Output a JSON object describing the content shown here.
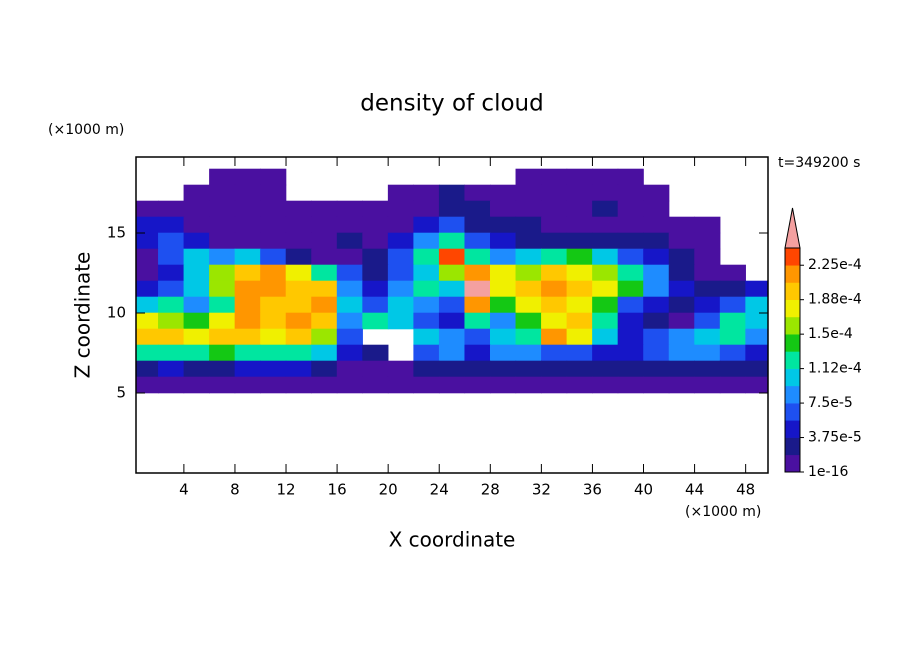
{
  "chart_data": {
    "type": "contour",
    "title": "density of cloud",
    "x_label": "X coordinate",
    "y_label": "Z coordinate",
    "x_unit": "(×1000 m)",
    "y_unit": "(×1000 m)",
    "annotation": "t=349200 s",
    "xlim": [
      0.25,
      49.75
    ],
    "ylim": [
      0,
      19.75
    ],
    "xticks": [
      4,
      8,
      12,
      16,
      20,
      24,
      28,
      32,
      36,
      40,
      44,
      48
    ],
    "yticks": [
      5,
      10,
      15
    ],
    "x": [
      1,
      3,
      5,
      7,
      9,
      11,
      13,
      15,
      17,
      19,
      21,
      23,
      25,
      27,
      29,
      31,
      33,
      35,
      37,
      39,
      41,
      43,
      45,
      47,
      49
    ],
    "z": [
      18.5,
      17.5,
      16.5,
      15.5,
      14.5,
      13.5,
      12.5,
      11.5,
      10.5,
      9.5,
      8.5,
      7.5,
      6.5,
      5.5
    ],
    "levels": [
      1e-16,
      1.875e-05,
      3.75e-05,
      5.625e-05,
      7.5e-05,
      9.375e-05,
      0.0001125,
      0.00013125,
      0.00015,
      0.00016875,
      0.0001875,
      0.00020625,
      0.000225,
      0.00024375
    ],
    "colors": [
      "#4a10a0",
      "#1a1a8a",
      "#1616c8",
      "#1e50f0",
      "#1e8cff",
      "#00c8e6",
      "#00e6a0",
      "#14c814",
      "#9be600",
      "#f0f000",
      "#ffc800",
      "#ff9600",
      "#ff4600",
      "#f4a0a0"
    ],
    "cbar_ticks": [
      {
        "value": 1e-16,
        "label": "1e-16"
      },
      {
        "value": 3.75e-05,
        "label": "3.75e-5"
      },
      {
        "value": 7.5e-05,
        "label": "7.5e-5"
      },
      {
        "value": 0.0001125,
        "label": "1.12e-4"
      },
      {
        "value": 0.00015,
        "label": "1.5e-4"
      },
      {
        "value": 0.0001875,
        "label": "1.88e-4"
      },
      {
        "value": 0.000225,
        "label": "2.25e-4"
      }
    ],
    "values": [
      [
        null,
        null,
        null,
        9e-06,
        9e-06,
        9e-06,
        null,
        null,
        null,
        null,
        null,
        null,
        null,
        null,
        null,
        9e-06,
        9e-06,
        9e-06,
        9e-06,
        9e-06,
        null,
        null,
        null,
        null,
        null
      ],
      [
        null,
        null,
        9e-06,
        9e-06,
        9e-06,
        9e-06,
        null,
        null,
        null,
        null,
        9e-06,
        9e-06,
        2.8e-05,
        9e-06,
        9e-06,
        9e-06,
        9e-06,
        9e-06,
        9e-06,
        9e-06,
        9e-06,
        null,
        null,
        null,
        null
      ],
      [
        9e-06,
        9e-06,
        9e-06,
        9e-06,
        9e-06,
        9e-06,
        9e-06,
        9e-06,
        9e-06,
        9e-06,
        9e-06,
        9e-06,
        2.8e-05,
        2.8e-05,
        9e-06,
        9e-06,
        9e-06,
        9e-06,
        2.8e-05,
        9e-06,
        9e-06,
        null,
        null,
        null,
        null
      ],
      [
        4.7e-05,
        4.7e-05,
        9e-06,
        9e-06,
        9e-06,
        9e-06,
        9e-06,
        9e-06,
        9e-06,
        9e-06,
        9e-06,
        4.7e-05,
        6.6e-05,
        2.8e-05,
        2.8e-05,
        2.8e-05,
        9e-06,
        9e-06,
        9e-06,
        9e-06,
        9e-06,
        9e-06,
        9e-06,
        null,
        null
      ],
      [
        4.7e-05,
        6.6e-05,
        4.7e-05,
        9e-06,
        9e-06,
        9e-06,
        9e-06,
        9e-06,
        2.8e-05,
        9e-06,
        4.7e-05,
        8.4e-05,
        0.000122,
        6.6e-05,
        4.7e-05,
        2.8e-05,
        2.8e-05,
        2.8e-05,
        2.8e-05,
        2.8e-05,
        2.8e-05,
        9e-06,
        9e-06,
        null,
        null
      ],
      [
        9e-06,
        6.6e-05,
        0.000103,
        8.4e-05,
        0.000103,
        6.6e-05,
        2.8e-05,
        9e-06,
        9e-06,
        2.8e-05,
        6.6e-05,
        0.000122,
        0.000234,
        0.000122,
        8.4e-05,
        0.000103,
        0.000122,
        0.000141,
        0.000103,
        6.6e-05,
        4.7e-05,
        2.8e-05,
        9e-06,
        null,
        null
      ],
      [
        9e-06,
        4.7e-05,
        0.000103,
        0.000159,
        0.000197,
        0.000216,
        0.000178,
        0.000122,
        6.6e-05,
        2.8e-05,
        6.6e-05,
        0.000103,
        0.000159,
        0.000216,
        0.000178,
        0.000159,
        0.000197,
        0.000178,
        0.000159,
        0.000122,
        8.4e-05,
        2.8e-05,
        9e-06,
        9e-06,
        null
      ],
      [
        4.7e-05,
        6.6e-05,
        0.000103,
        0.000159,
        0.000216,
        0.000216,
        0.000197,
        0.000197,
        8.4e-05,
        4.7e-05,
        8.4e-05,
        0.000122,
        0.000103,
        0.00025,
        0.000178,
        0.000197,
        0.000216,
        0.000197,
        0.000178,
        0.000141,
        8.4e-05,
        4.7e-05,
        2.8e-05,
        2.8e-05,
        4.7e-05
      ],
      [
        0.000103,
        0.000122,
        8.4e-05,
        0.000122,
        0.000216,
        0.000197,
        0.000197,
        0.000216,
        0.000103,
        6.6e-05,
        0.000103,
        8.4e-05,
        6.6e-05,
        0.000216,
        0.000141,
        0.000178,
        0.000197,
        0.000178,
        0.000141,
        6.6e-05,
        4.7e-05,
        2.8e-05,
        4.7e-05,
        6.6e-05,
        0.000103
      ],
      [
        0.000178,
        0.000159,
        0.000141,
        0.000178,
        0.000216,
        0.000197,
        0.000216,
        0.000197,
        8.4e-05,
        0.000122,
        0.000103,
        6.6e-05,
        4.7e-05,
        0.000122,
        8.4e-05,
        0.000141,
        0.000178,
        0.000197,
        0.000122,
        4.7e-05,
        2.8e-05,
        9e-06,
        6.6e-05,
        0.000122,
        0.000103
      ],
      [
        0.000197,
        0.000197,
        0.000178,
        0.000197,
        0.000197,
        0.000178,
        0.000197,
        0.000159,
        6.6e-05,
        null,
        null,
        0.000103,
        8.4e-05,
        6.6e-05,
        0.000103,
        0.000122,
        0.000216,
        0.000178,
        0.000103,
        4.7e-05,
        6.6e-05,
        8.4e-05,
        0.000103,
        0.000122,
        8.4e-05
      ],
      [
        0.000122,
        0.000122,
        0.000122,
        0.000141,
        0.000122,
        0.000122,
        0.000122,
        0.000103,
        4.7e-05,
        2.8e-05,
        null,
        6.6e-05,
        8.4e-05,
        4.7e-05,
        8.4e-05,
        8.4e-05,
        6.6e-05,
        6.6e-05,
        4.7e-05,
        4.7e-05,
        6.6e-05,
        8.4e-05,
        8.4e-05,
        6.6e-05,
        4.7e-05
      ],
      [
        2.8e-05,
        4.7e-05,
        2.8e-05,
        2.8e-05,
        4.7e-05,
        4.7e-05,
        4.7e-05,
        2.8e-05,
        9e-06,
        9e-06,
        9e-06,
        2.8e-05,
        2.8e-05,
        2.8e-05,
        2.8e-05,
        2.8e-05,
        2.8e-05,
        2.8e-05,
        2.8e-05,
        2.8e-05,
        2.8e-05,
        2.8e-05,
        2.8e-05,
        2.8e-05,
        2.8e-05
      ],
      [
        9e-06,
        9e-06,
        9e-06,
        9e-06,
        9e-06,
        9e-06,
        9e-06,
        9e-06,
        9e-06,
        9e-06,
        9e-06,
        9e-06,
        9e-06,
        9e-06,
        9e-06,
        9e-06,
        9e-06,
        9e-06,
        9e-06,
        9e-06,
        9e-06,
        9e-06,
        9e-06,
        9e-06,
        9e-06
      ]
    ]
  }
}
